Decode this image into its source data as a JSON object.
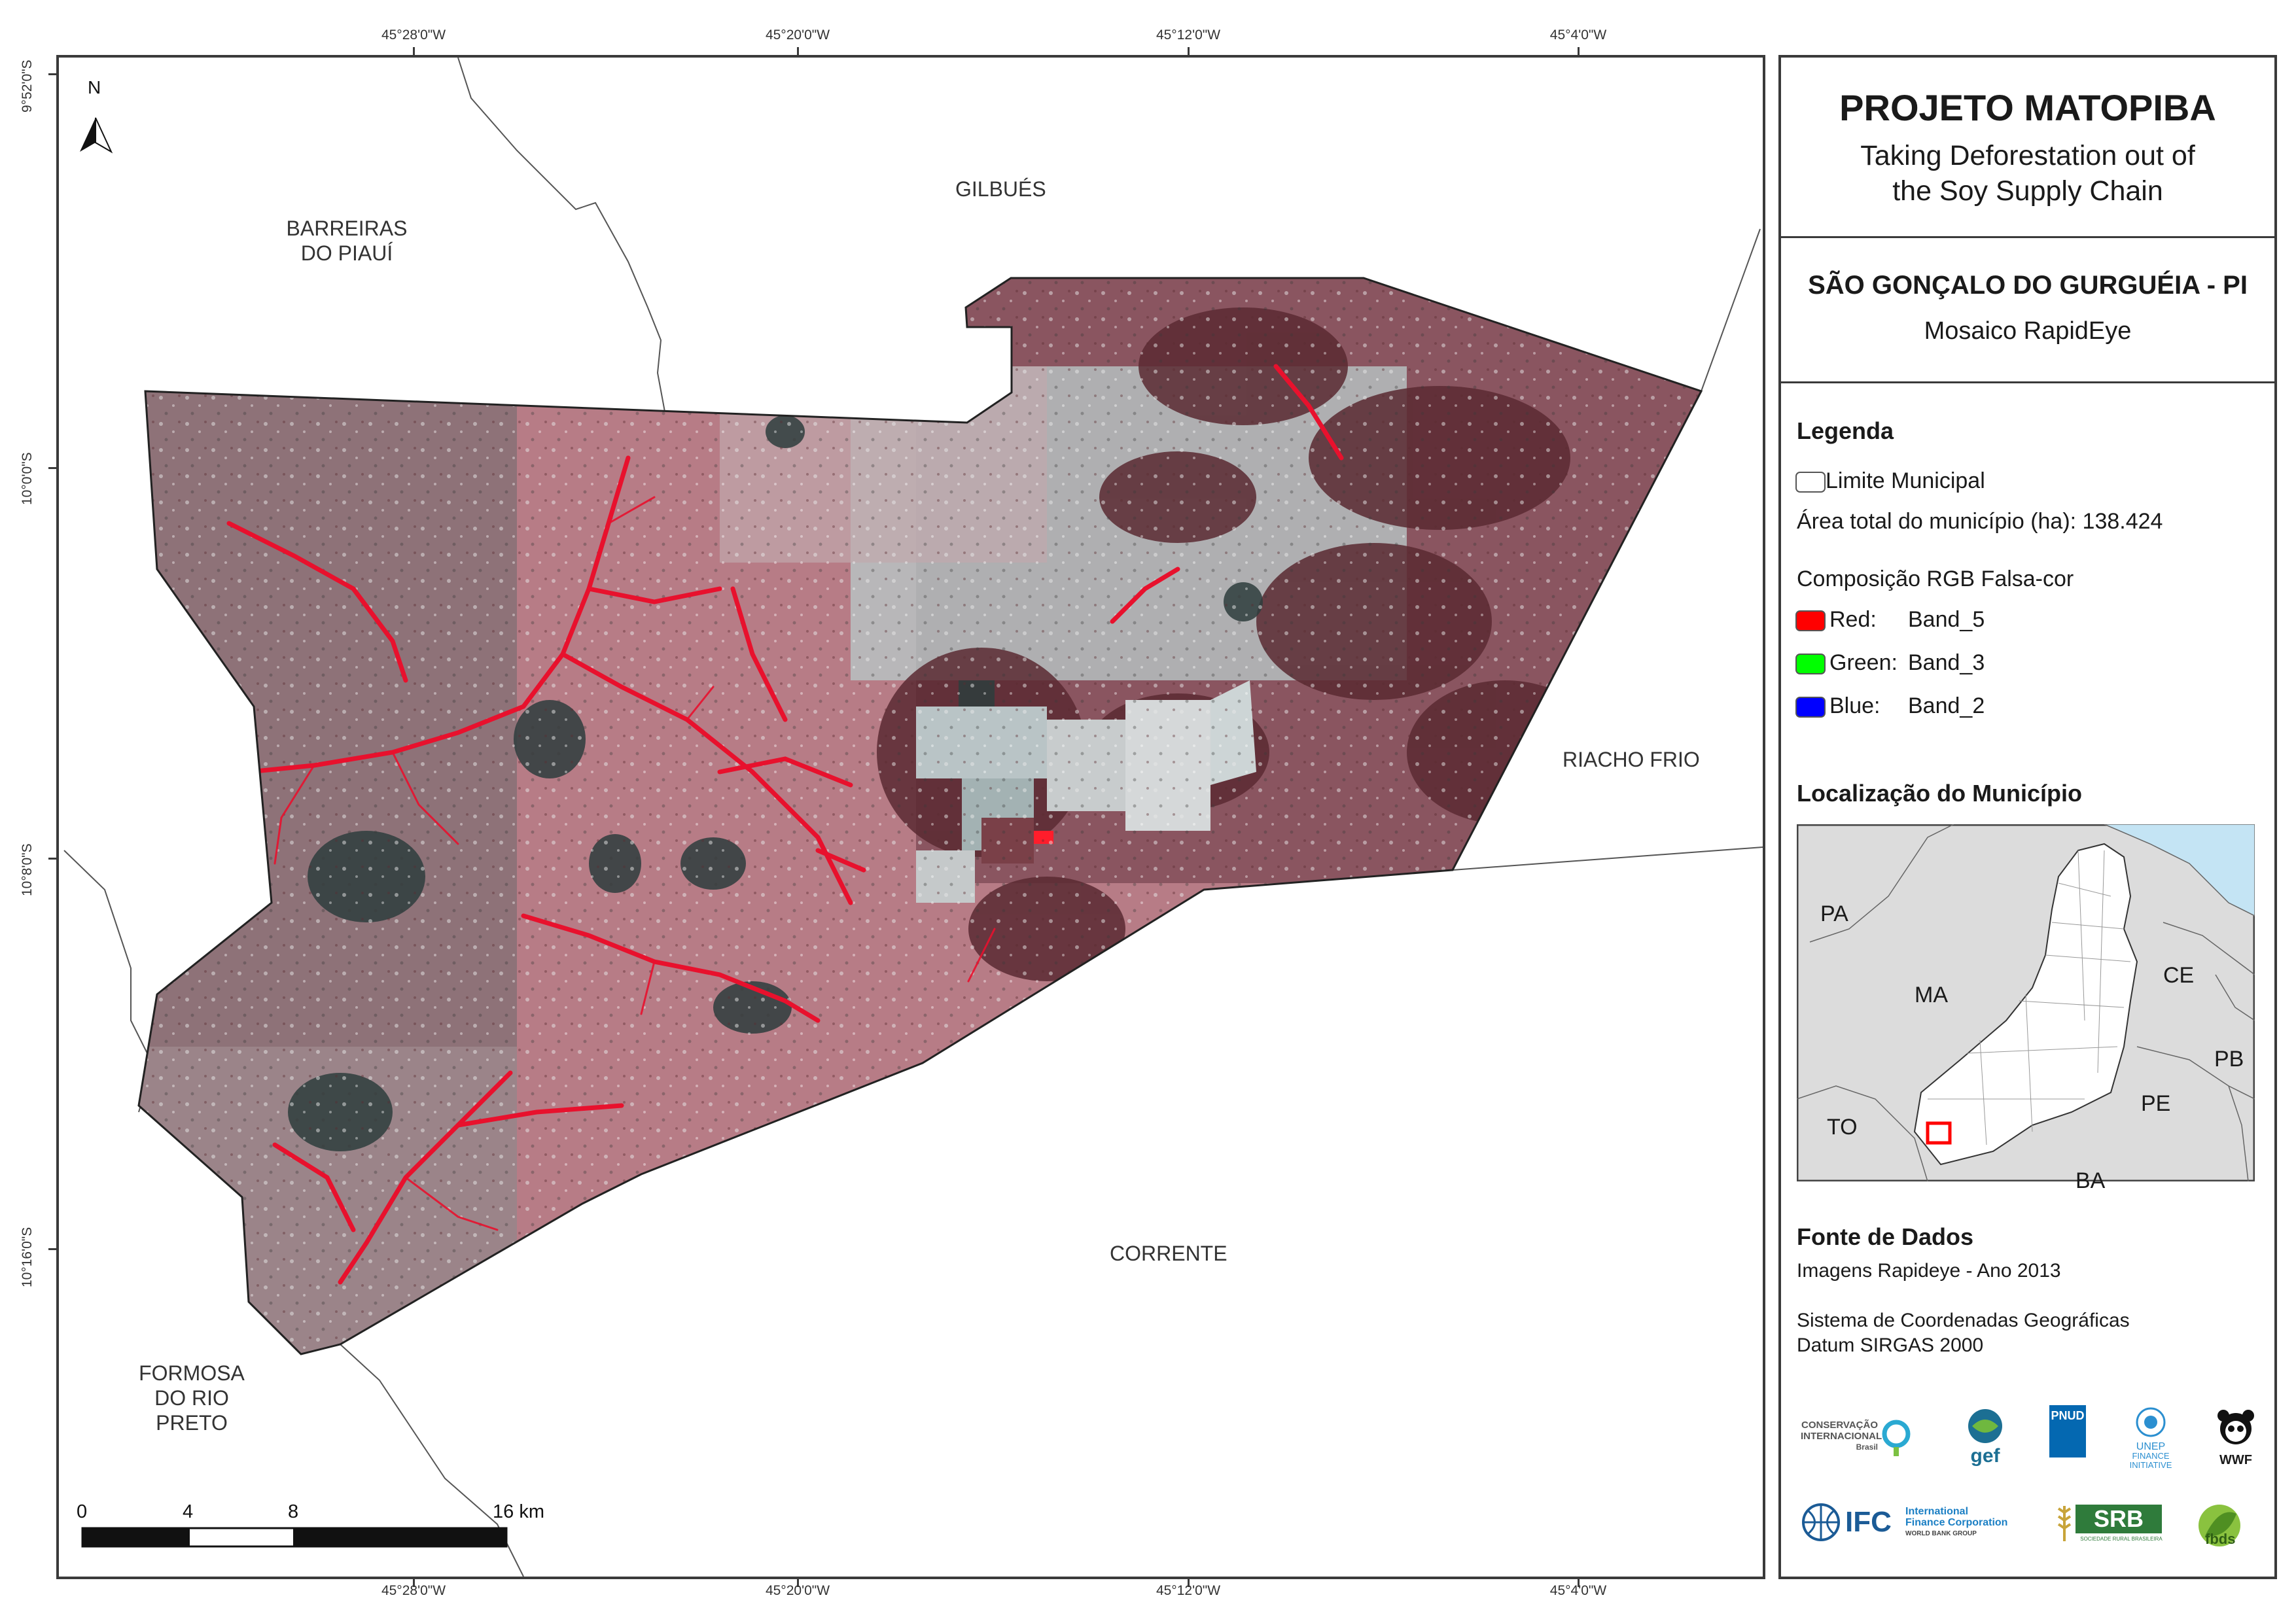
{
  "title": "PROJETO MATOPIBA",
  "subtitle_lines": [
    "Taking Deforestation out of",
    "the Soy Supply Chain"
  ],
  "municipality": "SÃO GONÇALO DO GURGUÉIA - PI",
  "mosaic": "Mosaico RapidEye",
  "legend": {
    "heading": "Legenda",
    "boundary_label": "Limite Municipal",
    "area_text": "Área total do município (ha): 138.424",
    "composition_heading": "Composição RGB Falsa-cor",
    "bands": [
      {
        "channel": "Red:",
        "band": "Band_5",
        "color": "#ff0000"
      },
      {
        "channel": "Green:",
        "band": "Band_3",
        "color": "#00ff00"
      },
      {
        "channel": "Blue:",
        "band": "Band_2",
        "color": "#0000ff"
      }
    ]
  },
  "location": {
    "heading": "Localização do Município",
    "states": [
      "PA",
      "MA",
      "CE",
      "PB",
      "PE",
      "TO",
      "BA"
    ]
  },
  "sources": {
    "heading": "Fonte de Dados",
    "imagery": "Imagens Rapideye - Ano 2013",
    "crs_line1": "Sistema de Coordenadas Geográficas",
    "crs_line2": "Datum SIRGAS 2000"
  },
  "longitude_ticks": [
    "45°28'0\"W",
    "45°20'0\"W",
    "45°12'0\"W",
    "45°4'0\"W"
  ],
  "latitude_ticks": [
    "9°52'0\"S",
    "10°0'0\"S",
    "10°8'0\"S",
    "10°16'0\"S"
  ],
  "neighbors": {
    "barreiras": [
      "BARREIRAS",
      "DO PIAUÍ"
    ],
    "gilbues": "GILBUÉS",
    "riacho_frio": "RIACHO FRIO",
    "corrente": "CORRENTE",
    "formosa": [
      "FORMOSA",
      "DO RIO",
      "PRETO"
    ]
  },
  "north_label": "N",
  "scale_bar": {
    "labels": [
      "0",
      "4",
      "8",
      "16 km"
    ]
  },
  "logos": {
    "ci": [
      "CONSERVAÇÃO",
      "INTERNACIONAL",
      "Brasil"
    ],
    "gef": "gef",
    "undp": "PNUD",
    "unep": [
      "UNEP",
      "FINANCE",
      "INITIATIVE"
    ],
    "wwf": "WWF",
    "ifc": "IFC",
    "ifc_full": [
      "International",
      "Finance Corporation",
      "WORLD BANK GROUP"
    ],
    "srb": "SRB",
    "srb_full": "SOCIEDADE RURAL BRASILEIRA",
    "fbds": "fbds"
  },
  "colors": {
    "frame": "#3a3a3a",
    "deforestation_red": "#e8112d",
    "sea": "#c4e4f4",
    "land": "#dcdcdc",
    "highlight": "#ff0000"
  }
}
